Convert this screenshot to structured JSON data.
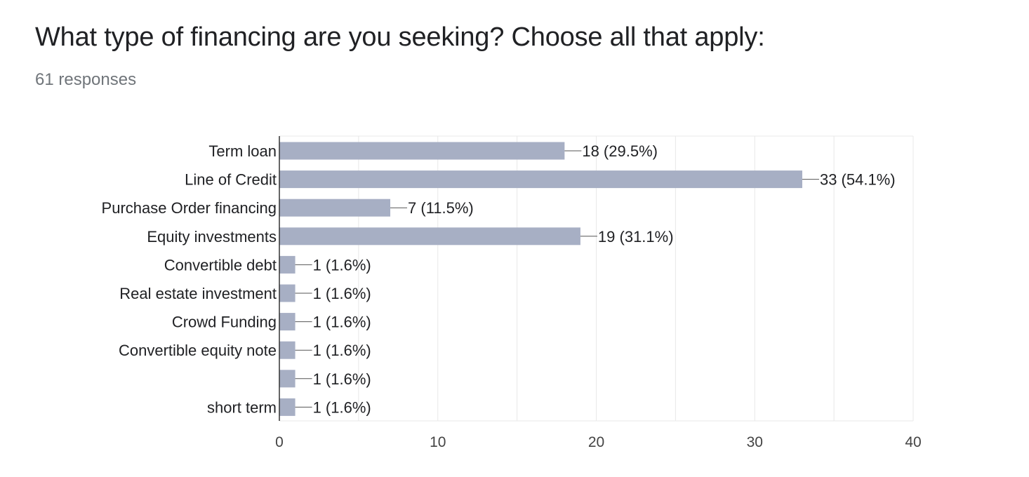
{
  "question": {
    "title": "What type of financing are you seeking? Choose all that apply:",
    "responses": "61 responses"
  },
  "colors": {
    "bar": "#a7afc4",
    "grid": "#e8e8e8",
    "axis": "#333333",
    "text": "#202124"
  },
  "chart_data": {
    "type": "bar",
    "orientation": "horizontal",
    "categories": [
      "Term loan",
      "Line of Credit",
      "Purchase Order financing",
      "Equity investments",
      "Convertible debt",
      "Real estate investment",
      "Crowd Funding",
      "Convertible equity note",
      "",
      "short term"
    ],
    "values": [
      18,
      33,
      7,
      19,
      1,
      1,
      1,
      1,
      1,
      1
    ],
    "data_labels": [
      "18 (29.5%)",
      "33 (54.1%)",
      "7 (11.5%)",
      "19 (31.1%)",
      "1 (1.6%)",
      "1 (1.6%)",
      "1 (1.6%)",
      "1 (1.6%)",
      "1 (1.6%)",
      "1 (1.6%)"
    ],
    "xlim": [
      0,
      40
    ],
    "xticks": [
      0,
      10,
      20,
      30,
      40
    ],
    "minor_grid_step": 5,
    "grid": true,
    "legend": "none"
  }
}
